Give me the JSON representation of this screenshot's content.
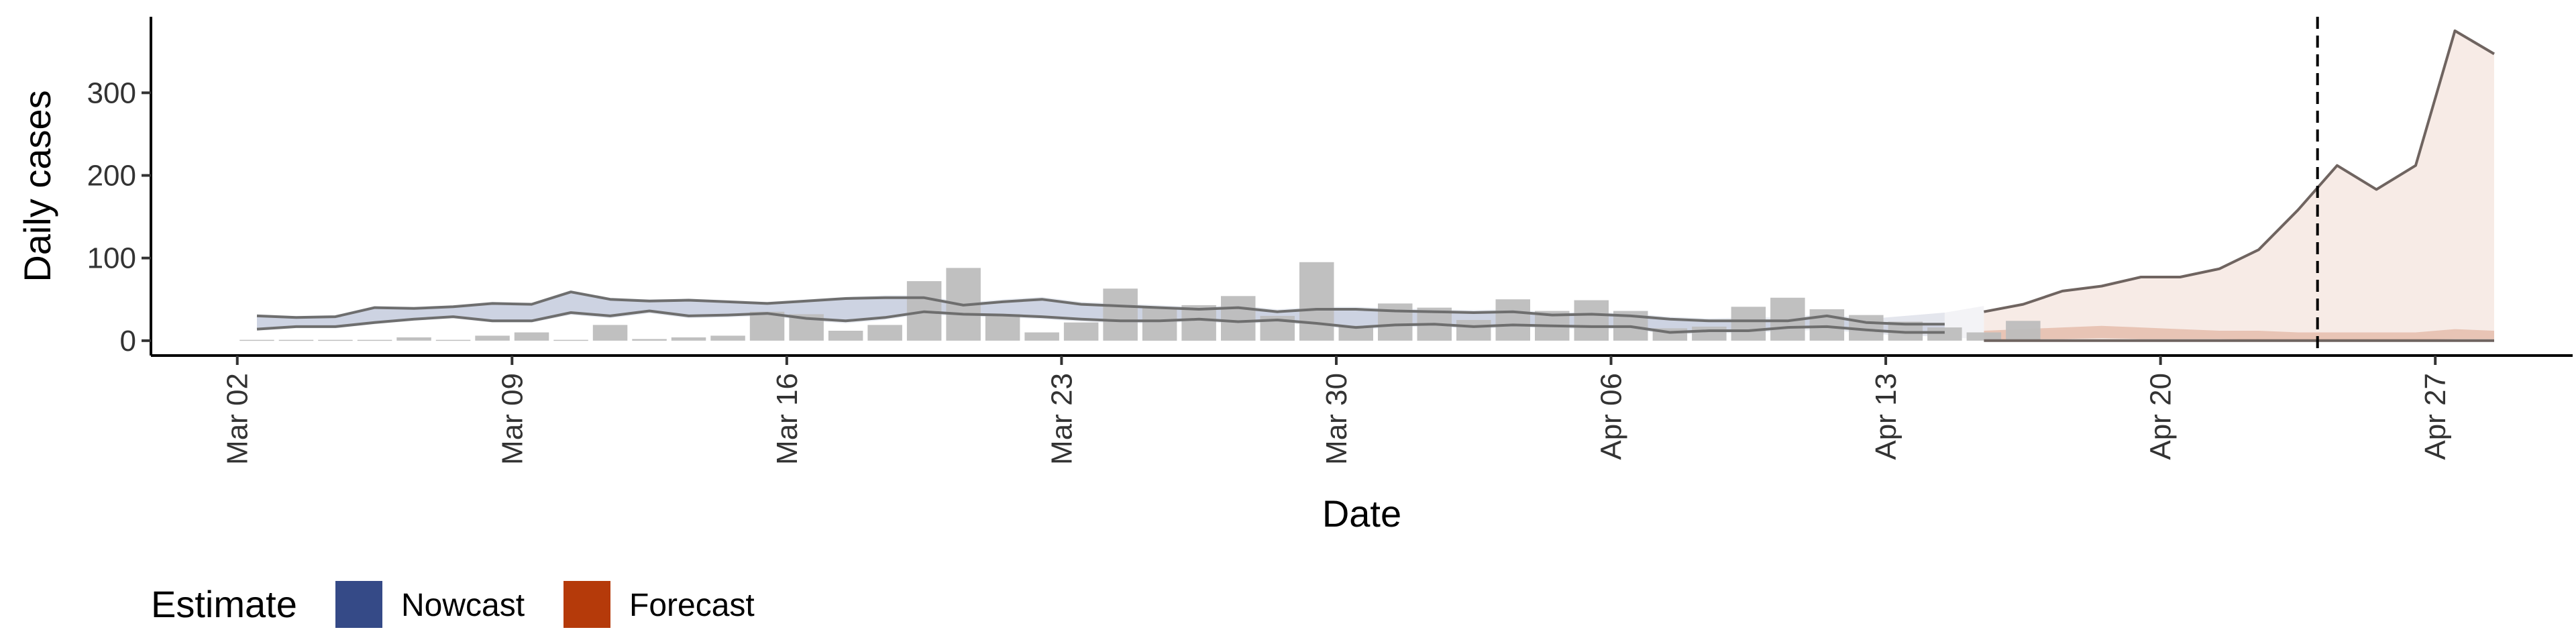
{
  "chart_data": {
    "type": "bar",
    "xlabel": "Date",
    "ylabel": "Daily cases",
    "x_tick_labels": [
      "Mar 02",
      "Mar 09",
      "Mar 16",
      "Mar 23",
      "Mar 30",
      "Apr 06",
      "Apr 13",
      "Apr 20",
      "Apr 27"
    ],
    "y_ticks": [
      0,
      100,
      200,
      300
    ],
    "ylim": [
      -18,
      392
    ],
    "x_range_days": [
      -2.2,
      59.5
    ],
    "day0": "Mar 02",
    "reference_line": {
      "day": 53,
      "style": "dashed"
    },
    "grid": false,
    "legend": {
      "position": "bottom-left",
      "title": "Estimate",
      "items": [
        {
          "label": "Nowcast",
          "color": "#354A87"
        },
        {
          "label": "Forecast",
          "color": "#B53A0A"
        }
      ]
    },
    "colors": {
      "bars": "#BDBDBD",
      "nowcast_band": "#354A87",
      "forecast_band": "#B53A0A",
      "lines": "#6E6E6E",
      "forecast_line": "#6F6460",
      "reference_line": "#000000"
    },
    "observed_cases": [
      1,
      1,
      1,
      1,
      4,
      1,
      6,
      10,
      1,
      19,
      2,
      4,
      6,
      35,
      32,
      12,
      19,
      72,
      88,
      32,
      10,
      22,
      63,
      40,
      43,
      54,
      30,
      95,
      18,
      45,
      40,
      25,
      50,
      36,
      49,
      36,
      15,
      17,
      41,
      52,
      38,
      31,
      23,
      16,
      10,
      24
    ],
    "nowcast": {
      "days": [
        0.5,
        1.5,
        2.5,
        3.5,
        4.5,
        5.5,
        6.5,
        7.5,
        8.5,
        9.5,
        10.5,
        11.5,
        12.5,
        13.5,
        14.5,
        15.5,
        16.5,
        17.5,
        18.5,
        19.5,
        20.5,
        21.5,
        22.5,
        23.5,
        24.5,
        25.5,
        26.5,
        27.5,
        28.5,
        29.5,
        30.5,
        31.5,
        32.5,
        33.5,
        34.5,
        35.5,
        36.5,
        37.5,
        38.5,
        39.5,
        40.5,
        41.5,
        42.5,
        43.5
      ],
      "upper": [
        30,
        28,
        29,
        40,
        39,
        41,
        45,
        44,
        59,
        50,
        48,
        49,
        47,
        45,
        48,
        51,
        52,
        52,
        43,
        47,
        50,
        44,
        42,
        40,
        38,
        40,
        35,
        38,
        38,
        36,
        35,
        34,
        35,
        31,
        32,
        30,
        26,
        24,
        24,
        24,
        30,
        22,
        20,
        20
      ],
      "lower": [
        14,
        17,
        17,
        22,
        26,
        29,
        24,
        24,
        34,
        30,
        36,
        30,
        31,
        33,
        27,
        24,
        28,
        35,
        32,
        31,
        29,
        26,
        24,
        24,
        26,
        23,
        25,
        21,
        16,
        19,
        20,
        17,
        19,
        18,
        17,
        17,
        10,
        12,
        12,
        16,
        17,
        13,
        10,
        10
      ],
      "outer_upper": [
        32,
        30,
        31,
        42,
        41,
        43,
        47,
        46,
        61,
        52,
        50,
        51,
        49,
        47,
        50,
        53,
        55,
        55,
        46,
        50,
        53,
        47,
        45,
        43,
        41,
        43,
        38,
        41,
        41,
        39,
        38,
        37,
        38,
        34,
        35,
        33,
        29,
        27,
        28,
        28,
        33,
        26,
        30,
        34
      ],
      "outer_lower": [
        12,
        15,
        15,
        20,
        24,
        27,
        22,
        22,
        31,
        27,
        33,
        27,
        28,
        30,
        24,
        21,
        25,
        32,
        29,
        28,
        26,
        23,
        21,
        21,
        23,
        20,
        22,
        18,
        13,
        16,
        17,
        14,
        16,
        15,
        14,
        14,
        7,
        9,
        9,
        12,
        13,
        9,
        6,
        5
      ],
      "fade": {
        "days": [
          41.5,
          42.5,
          43.5,
          44.5
        ],
        "upper": [
          26,
          30,
          34,
          42
        ],
        "lower": [
          9,
          6,
          5,
          1
        ]
      }
    },
    "forecast": {
      "days": [
        44.5,
        45.5,
        46.5,
        47.5,
        48.5,
        49.5,
        50.5,
        51.5,
        52.5,
        53.5,
        54.5,
        55.5,
        56.5,
        57.5
      ],
      "upper": [
        35,
        44,
        60,
        66,
        77,
        77,
        87,
        110,
        158,
        212,
        183,
        212,
        375,
        347
      ],
      "lower": [
        0,
        0,
        0,
        0,
        0,
        0,
        0,
        0,
        0,
        0,
        0,
        0,
        0,
        0
      ],
      "inner_upper": [
        12,
        14,
        16,
        18,
        16,
        14,
        12,
        12,
        10,
        10,
        10,
        10,
        14,
        12
      ],
      "inner_lower": [
        1,
        2,
        2,
        3,
        2,
        2,
        2,
        1,
        1,
        1,
        1,
        1,
        2,
        2
      ]
    }
  }
}
